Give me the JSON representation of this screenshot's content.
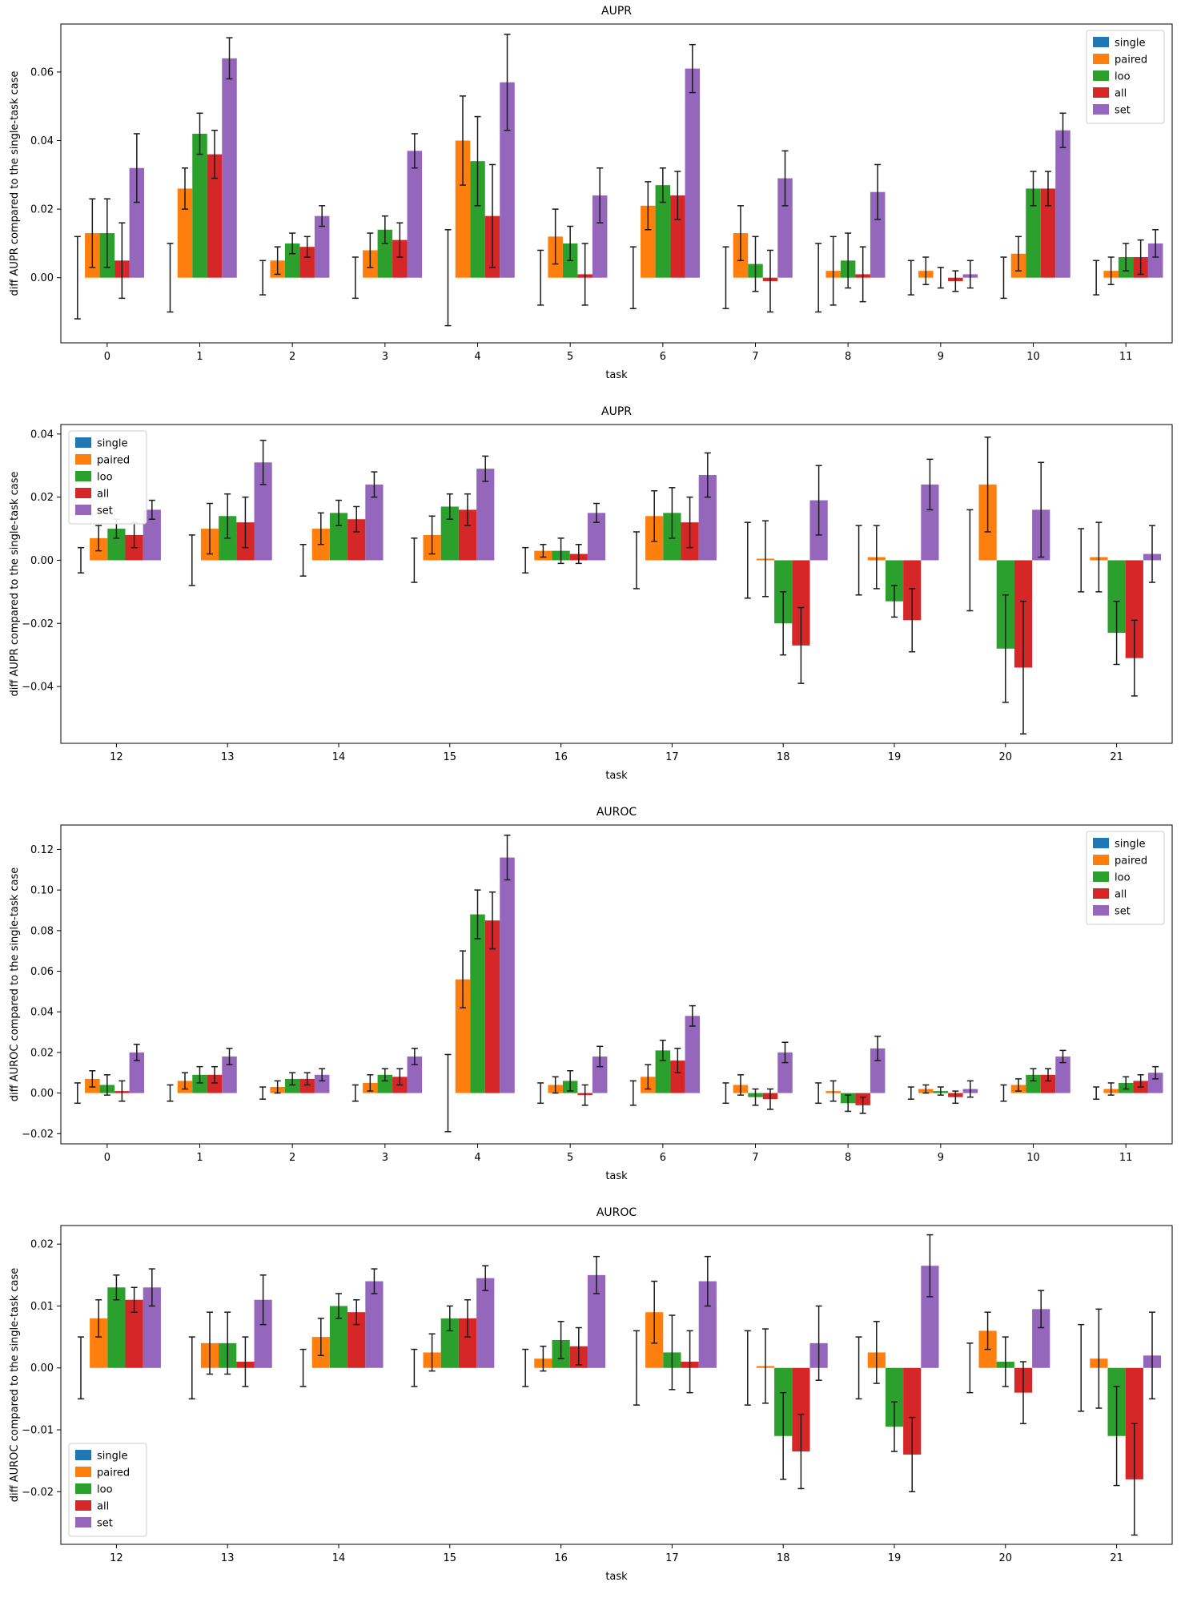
{
  "page": {
    "background": "#ffffff"
  },
  "legend": {
    "labels": [
      "single",
      "paired",
      "loo",
      "all",
      "set"
    ]
  },
  "colors": {
    "single": "#1f77b4",
    "paired": "#ff7f0e",
    "loo": "#2ca02c",
    "all": "#d62728",
    "set": "#9467bd"
  },
  "chart_data": [
    {
      "type": "bar",
      "title": "AUPR",
      "xlabel": "task",
      "ylabel": "diff AUPR compared to the single-task case",
      "categories": [
        "0",
        "1",
        "2",
        "3",
        "4",
        "5",
        "6",
        "7",
        "8",
        "9",
        "10",
        "11"
      ],
      "ylim": [
        -0.019,
        0.074
      ],
      "yticks": [
        0.0,
        0.02,
        0.04,
        0.06
      ],
      "legend_position": "top-right",
      "grid": false,
      "series": [
        {
          "name": "single",
          "color": "#1f77b4",
          "values": [
            0,
            0,
            0,
            0,
            0,
            0,
            0,
            0,
            0,
            0,
            0,
            0
          ],
          "errors": [
            0.012,
            0.01,
            0.005,
            0.006,
            0.014,
            0.008,
            0.009,
            0.009,
            0.01,
            0.005,
            0.006,
            0.005
          ]
        },
        {
          "name": "paired",
          "color": "#ff7f0e",
          "values": [
            0.013,
            0.026,
            0.005,
            0.008,
            0.04,
            0.012,
            0.021,
            0.013,
            0.002,
            0.002,
            0.007,
            0.002
          ],
          "errors": [
            0.01,
            0.006,
            0.004,
            0.005,
            0.013,
            0.008,
            0.007,
            0.008,
            0.01,
            0.004,
            0.005,
            0.004
          ]
        },
        {
          "name": "loo",
          "color": "#2ca02c",
          "values": [
            0.013,
            0.042,
            0.01,
            0.014,
            0.034,
            0.01,
            0.027,
            0.004,
            0.005,
            0.0,
            0.026,
            0.006
          ],
          "errors": [
            0.01,
            0.006,
            0.003,
            0.004,
            0.013,
            0.005,
            0.005,
            0.008,
            0.008,
            0.003,
            0.005,
            0.004
          ]
        },
        {
          "name": "all",
          "color": "#d62728",
          "values": [
            0.005,
            0.036,
            0.009,
            0.011,
            0.018,
            0.001,
            0.024,
            -0.001,
            0.001,
            -0.001,
            0.026,
            0.006
          ],
          "errors": [
            0.011,
            0.007,
            0.003,
            0.005,
            0.015,
            0.009,
            0.007,
            0.009,
            0.008,
            0.003,
            0.005,
            0.005
          ]
        },
        {
          "name": "set",
          "color": "#9467bd",
          "values": [
            0.032,
            0.064,
            0.018,
            0.037,
            0.057,
            0.024,
            0.061,
            0.029,
            0.025,
            0.001,
            0.043,
            0.01
          ],
          "errors": [
            0.01,
            0.006,
            0.003,
            0.005,
            0.014,
            0.008,
            0.007,
            0.008,
            0.008,
            0.004,
            0.005,
            0.004
          ]
        }
      ]
    },
    {
      "type": "bar",
      "title": "AUPR",
      "xlabel": "task",
      "ylabel": "diff AUPR compared to the single-task case",
      "categories": [
        "12",
        "13",
        "14",
        "15",
        "16",
        "17",
        "18",
        "19",
        "20",
        "21"
      ],
      "ylim": [
        -0.058,
        0.043
      ],
      "yticks": [
        -0.04,
        -0.02,
        0.0,
        0.02,
        0.04
      ],
      "legend_position": "top-left",
      "grid": false,
      "series": [
        {
          "name": "single",
          "color": "#1f77b4",
          "values": [
            0,
            0,
            0,
            0,
            0,
            0,
            0,
            0,
            0,
            0
          ],
          "errors": [
            0.004,
            0.008,
            0.005,
            0.007,
            0.004,
            0.009,
            0.012,
            0.011,
            0.016,
            0.01
          ]
        },
        {
          "name": "paired",
          "color": "#ff7f0e",
          "values": [
            0.007,
            0.01,
            0.01,
            0.008,
            0.003,
            0.014,
            0.0005,
            0.001,
            0.024,
            0.001
          ],
          "errors": [
            0.004,
            0.008,
            0.005,
            0.006,
            0.002,
            0.008,
            0.012,
            0.01,
            0.015,
            0.011
          ]
        },
        {
          "name": "loo",
          "color": "#2ca02c",
          "values": [
            0.01,
            0.014,
            0.015,
            0.017,
            0.003,
            0.015,
            -0.02,
            -0.013,
            -0.028,
            -0.023
          ],
          "errors": [
            0.003,
            0.007,
            0.004,
            0.004,
            0.004,
            0.008,
            0.01,
            0.005,
            0.017,
            0.01
          ]
        },
        {
          "name": "all",
          "color": "#d62728",
          "values": [
            0.008,
            0.012,
            0.013,
            0.016,
            0.002,
            0.012,
            -0.027,
            -0.019,
            -0.034,
            -0.031
          ],
          "errors": [
            0.004,
            0.008,
            0.004,
            0.005,
            0.003,
            0.008,
            0.012,
            0.01,
            0.021,
            0.012
          ]
        },
        {
          "name": "set",
          "color": "#9467bd",
          "values": [
            0.016,
            0.031,
            0.024,
            0.029,
            0.015,
            0.027,
            0.019,
            0.024,
            0.016,
            0.002
          ],
          "errors": [
            0.003,
            0.007,
            0.004,
            0.004,
            0.003,
            0.007,
            0.011,
            0.008,
            0.015,
            0.009
          ]
        }
      ]
    },
    {
      "type": "bar",
      "title": "AUROC",
      "xlabel": "task",
      "ylabel": "diff AUROC compared to the single-task case",
      "categories": [
        "0",
        "1",
        "2",
        "3",
        "4",
        "5",
        "6",
        "7",
        "8",
        "9",
        "10",
        "11"
      ],
      "ylim": [
        -0.025,
        0.132
      ],
      "yticks": [
        -0.02,
        0.0,
        0.02,
        0.04,
        0.06,
        0.08,
        0.1,
        0.12
      ],
      "legend_position": "top-right",
      "grid": false,
      "series": [
        {
          "name": "single",
          "color": "#1f77b4",
          "values": [
            0,
            0,
            0,
            0,
            0,
            0,
            0,
            0,
            0,
            0,
            0,
            0
          ],
          "errors": [
            0.005,
            0.004,
            0.003,
            0.004,
            0.019,
            0.005,
            0.006,
            0.005,
            0.005,
            0.003,
            0.004,
            0.003
          ]
        },
        {
          "name": "paired",
          "color": "#ff7f0e",
          "values": [
            0.007,
            0.006,
            0.003,
            0.005,
            0.056,
            0.004,
            0.008,
            0.004,
            0.001,
            0.002,
            0.004,
            0.002
          ],
          "errors": [
            0.004,
            0.004,
            0.003,
            0.004,
            0.014,
            0.004,
            0.006,
            0.005,
            0.005,
            0.002,
            0.003,
            0.003
          ]
        },
        {
          "name": "loo",
          "color": "#2ca02c",
          "values": [
            0.004,
            0.009,
            0.007,
            0.009,
            0.088,
            0.006,
            0.021,
            -0.002,
            -0.005,
            0.001,
            0.009,
            0.005
          ],
          "errors": [
            0.005,
            0.004,
            0.003,
            0.003,
            0.012,
            0.005,
            0.005,
            0.004,
            0.004,
            0.002,
            0.003,
            0.003
          ]
        },
        {
          "name": "all",
          "color": "#d62728",
          "values": [
            0.001,
            0.009,
            0.007,
            0.008,
            0.085,
            -0.001,
            0.016,
            -0.003,
            -0.006,
            -0.002,
            0.009,
            0.006
          ],
          "errors": [
            0.005,
            0.004,
            0.003,
            0.004,
            0.014,
            0.005,
            0.006,
            0.005,
            0.004,
            0.003,
            0.003,
            0.003
          ]
        },
        {
          "name": "set",
          "color": "#9467bd",
          "values": [
            0.02,
            0.018,
            0.009,
            0.018,
            0.116,
            0.018,
            0.038,
            0.02,
            0.022,
            0.002,
            0.018,
            0.01
          ],
          "errors": [
            0.004,
            0.004,
            0.003,
            0.004,
            0.011,
            0.005,
            0.005,
            0.005,
            0.006,
            0.004,
            0.003,
            0.003
          ]
        }
      ]
    },
    {
      "type": "bar",
      "title": "AUROC",
      "xlabel": "task",
      "ylabel": "diff AUROC compared to the single-task case",
      "categories": [
        "12",
        "13",
        "14",
        "15",
        "16",
        "17",
        "18",
        "19",
        "20",
        "21"
      ],
      "ylim": [
        -0.0285,
        0.023
      ],
      "yticks": [
        -0.02,
        -0.01,
        0.0,
        0.01,
        0.02
      ],
      "legend_position": "bottom-left",
      "grid": false,
      "series": [
        {
          "name": "single",
          "color": "#1f77b4",
          "values": [
            0,
            0,
            0,
            0,
            0,
            0,
            0,
            0,
            0,
            0
          ],
          "errors": [
            0.005,
            0.005,
            0.003,
            0.003,
            0.003,
            0.006,
            0.006,
            0.005,
            0.004,
            0.007
          ]
        },
        {
          "name": "paired",
          "color": "#ff7f0e",
          "values": [
            0.008,
            0.004,
            0.005,
            0.0025,
            0.0015,
            0.009,
            0.0003,
            0.0025,
            0.006,
            0.0015
          ],
          "errors": [
            0.003,
            0.005,
            0.003,
            0.003,
            0.002,
            0.005,
            0.006,
            0.005,
            0.003,
            0.008
          ]
        },
        {
          "name": "loo",
          "color": "#2ca02c",
          "values": [
            0.013,
            0.004,
            0.01,
            0.008,
            0.0045,
            0.0025,
            -0.011,
            -0.0095,
            0.001,
            -0.011
          ],
          "errors": [
            0.002,
            0.005,
            0.002,
            0.002,
            0.003,
            0.006,
            0.007,
            0.004,
            0.004,
            0.008
          ]
        },
        {
          "name": "all",
          "color": "#d62728",
          "values": [
            0.011,
            0.001,
            0.009,
            0.008,
            0.0035,
            0.001,
            -0.0135,
            -0.014,
            -0.004,
            -0.018
          ],
          "errors": [
            0.002,
            0.004,
            0.002,
            0.003,
            0.003,
            0.005,
            0.006,
            0.006,
            0.005,
            0.009
          ]
        },
        {
          "name": "set",
          "color": "#9467bd",
          "values": [
            0.013,
            0.011,
            0.014,
            0.0145,
            0.015,
            0.014,
            0.004,
            0.0165,
            0.0095,
            0.002
          ],
          "errors": [
            0.003,
            0.004,
            0.002,
            0.002,
            0.003,
            0.004,
            0.006,
            0.005,
            0.003,
            0.007
          ]
        }
      ]
    }
  ]
}
